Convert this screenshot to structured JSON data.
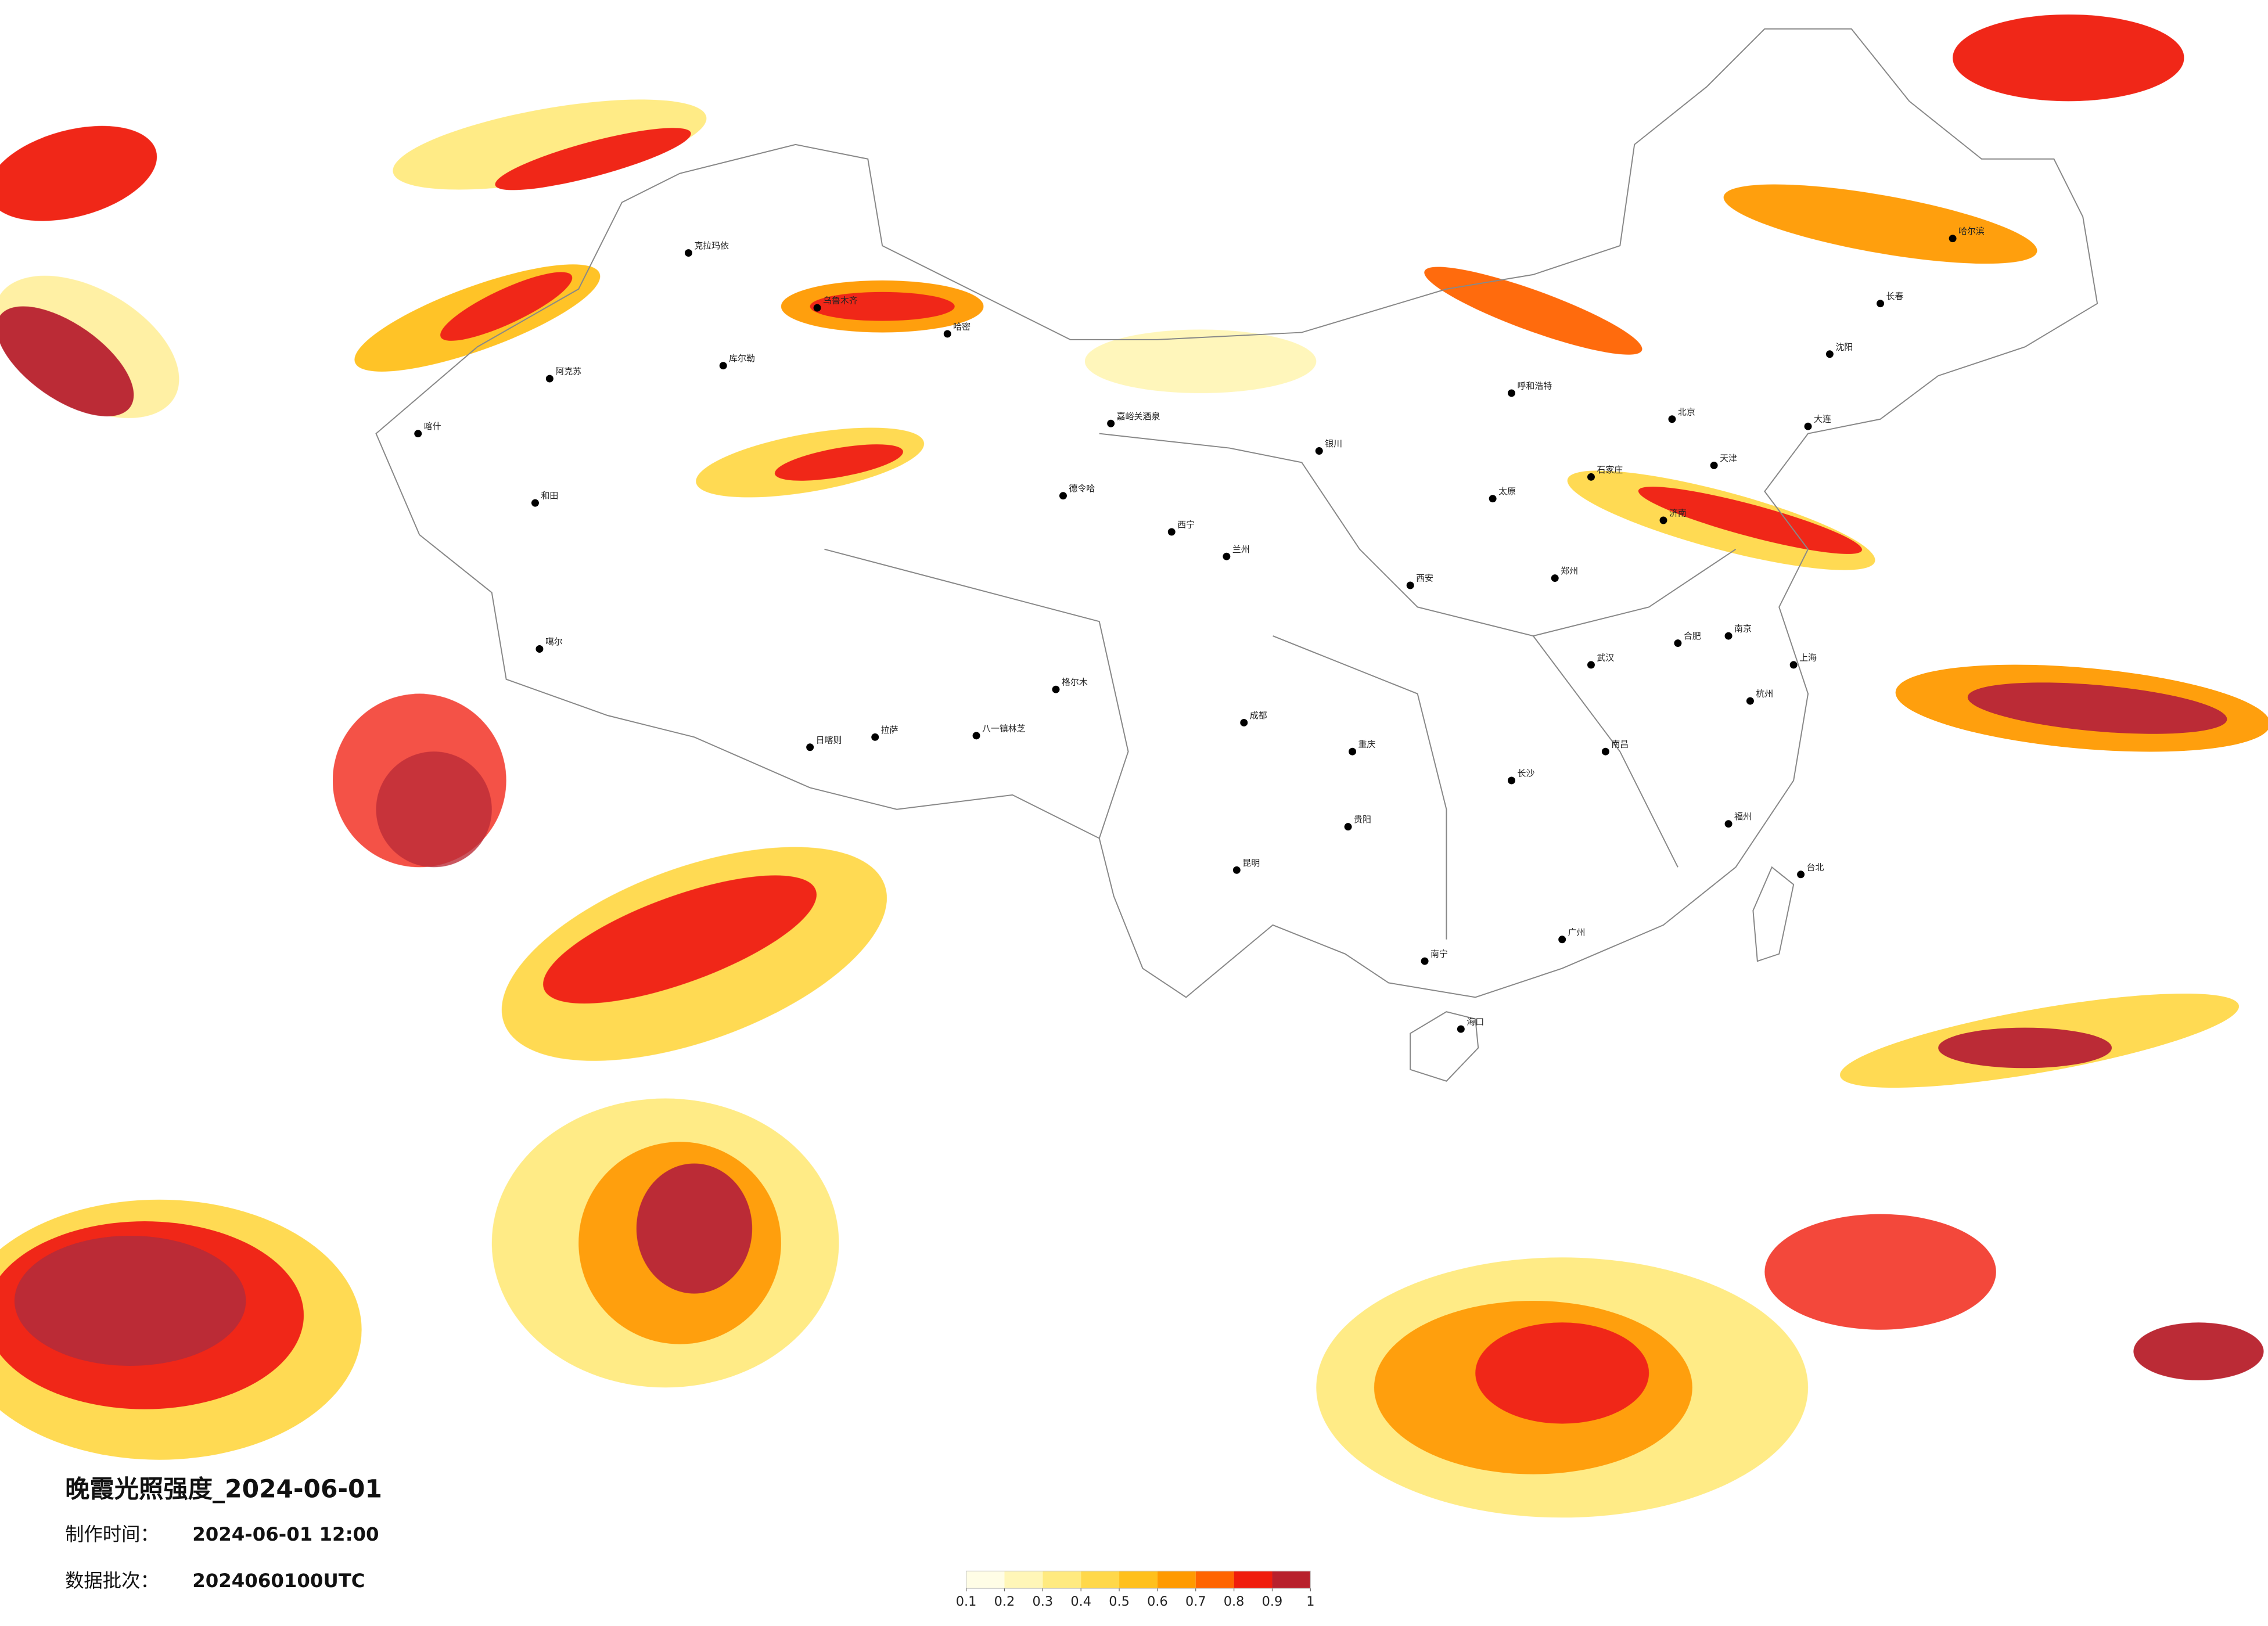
{
  "title": "晚霞光照强度_2024-06-01",
  "made_time": {
    "label": "制作时间：",
    "value": "2024-06-01 12:00"
  },
  "batch": {
    "label": "数据批次：",
    "value": "2024060100UTC"
  },
  "legend": {
    "ticks": [
      0.1,
      0.2,
      0.3,
      0.4,
      0.5,
      0.6,
      0.7,
      0.8,
      0.9,
      1
    ],
    "colors": [
      "#fffde6",
      "#fff6b8",
      "#ffea80",
      "#ffd84a",
      "#ffc01c",
      "#ff9a00",
      "#ff6400",
      "#f01c0c",
      "#b8202c"
    ]
  },
  "cities": [
    "克拉玛依",
    "乌鲁木齐",
    "哈密",
    "喀什",
    "和田",
    "阿克苏",
    "库尔勒",
    "嘉峪关酒泉",
    "德令哈",
    "格尔木",
    "噶尔",
    "拉萨",
    "日喀则",
    "八一镇林芝",
    "西宁",
    "兰州",
    "银川",
    "呼和浩特",
    "北京",
    "天津",
    "石家庄",
    "太原",
    "济南",
    "郑州",
    "西安",
    "成都",
    "重庆",
    "贵阳",
    "昆明",
    "南宁",
    "广州",
    "长沙",
    "武汉",
    "南京",
    "上海",
    "杭州",
    "福州",
    "南昌",
    "合肥",
    "海口",
    "台北",
    "长春",
    "沈阳",
    "哈尔滨",
    "大连"
  ]
}
